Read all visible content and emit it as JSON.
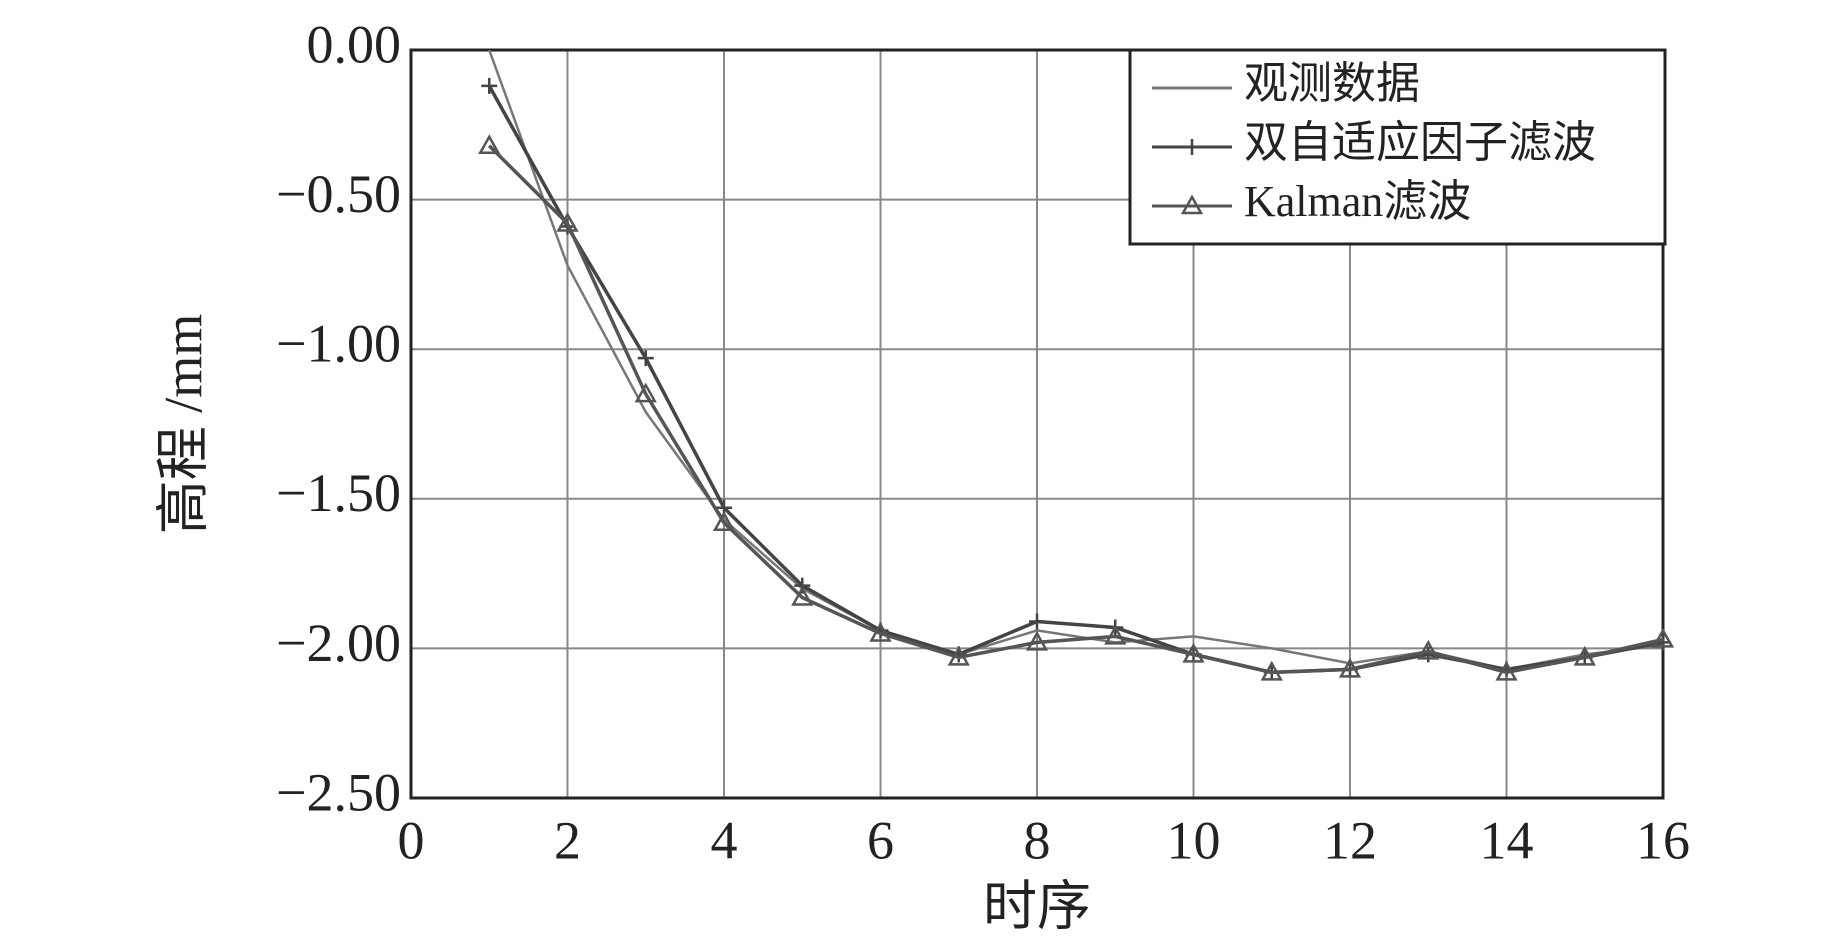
{
  "chart_data": {
    "type": "line",
    "x_label": "时序",
    "y_label": "高程 /mm",
    "x": [
      1,
      2,
      3,
      4,
      5,
      6,
      7,
      8,
      9,
      10,
      11,
      12,
      13,
      14,
      15,
      16
    ],
    "series": [
      {
        "name": "观测数据",
        "color": "#777777",
        "marker": "none",
        "values": [
          0.0,
          -0.72,
          -1.21,
          -1.57,
          -1.8,
          -1.94,
          -2.02,
          -1.94,
          -1.98,
          -1.96,
          -2.0,
          -2.05,
          -2.01,
          -2.07,
          -2.02,
          -1.99
        ]
      },
      {
        "name": "双自适应因子滤波",
        "color": "#444444",
        "marker": "plus",
        "values": [
          -0.12,
          -0.59,
          -1.03,
          -1.53,
          -1.79,
          -1.94,
          -2.02,
          -1.91,
          -1.93,
          -2.02,
          -2.08,
          -2.07,
          -2.02,
          -2.07,
          -2.03,
          -1.98
        ]
      },
      {
        "name": "Kalman滤波",
        "color": "#555555",
        "marker": "triangle",
        "values": [
          -0.32,
          -0.58,
          -1.15,
          -1.58,
          -1.83,
          -1.95,
          -2.03,
          -1.98,
          -1.96,
          -2.02,
          -2.08,
          -2.07,
          -2.01,
          -2.08,
          -2.03,
          -1.97
        ]
      }
    ],
    "xlim": [
      0,
      16
    ],
    "xticks": [
      0,
      2,
      4,
      6,
      8,
      10,
      12,
      14,
      16
    ],
    "ylim": [
      -2.5,
      0
    ],
    "yticks": [
      {
        "value": 0,
        "label": "0.00"
      },
      {
        "value": -0.5,
        "label": "−0.50"
      },
      {
        "value": -1,
        "label": "−1.00"
      },
      {
        "value": -1.5,
        "label": "−1.50"
      },
      {
        "value": -2,
        "label": "−2.00"
      },
      {
        "value": -2.5,
        "label": "−2.50"
      }
    ],
    "grid": true,
    "legend": "upper right"
  }
}
